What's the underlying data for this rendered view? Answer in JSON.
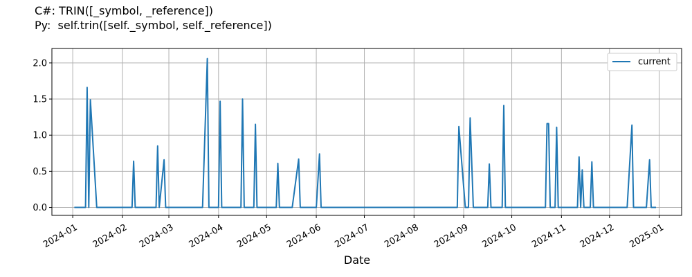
{
  "chart_data": {
    "type": "line",
    "title_lines": [
      "C#: TRIN([_symbol, _reference])",
      "Py:  self.trin([self._symbol, self._reference])"
    ],
    "xlabel": "Date",
    "ylabel": "",
    "x_ticks": [
      "2024-01",
      "2024-02",
      "2024-03",
      "2024-04",
      "2024-05",
      "2024-06",
      "2024-07",
      "2024-08",
      "2024-09",
      "2024-10",
      "2024-11",
      "2024-12",
      "2025-01"
    ],
    "y_ticks": [
      "0.0",
      "0.5",
      "1.0",
      "1.5",
      "2.0"
    ],
    "ylim": [
      -0.11,
      2.2
    ],
    "xlim": [
      "2023-12-19",
      "2025-01-15"
    ],
    "grid": true,
    "legend_position": "top-right",
    "series": [
      {
        "name": "current",
        "color": "#1f77b4",
        "points": [
          [
            "2024-01-02",
            0
          ],
          [
            "2024-01-09",
            0
          ],
          [
            "2024-01-10",
            1.66
          ],
          [
            "2024-01-11",
            0
          ],
          [
            "2024-01-12",
            1.49
          ],
          [
            "2024-01-16",
            0
          ],
          [
            "2024-02-07",
            0
          ],
          [
            "2024-02-08",
            0.64
          ],
          [
            "2024-02-09",
            0
          ],
          [
            "2024-02-22",
            0
          ],
          [
            "2024-02-23",
            0.85
          ],
          [
            "2024-02-24",
            0
          ],
          [
            "2024-02-27",
            0.66
          ],
          [
            "2024-02-28",
            0
          ],
          [
            "2024-03-22",
            0
          ],
          [
            "2024-03-25",
            2.06
          ],
          [
            "2024-03-26",
            0
          ],
          [
            "2024-04-01",
            0
          ],
          [
            "2024-04-02",
            1.47
          ],
          [
            "2024-04-03",
            0
          ],
          [
            "2024-04-15",
            0
          ],
          [
            "2024-04-16",
            1.5
          ],
          [
            "2024-04-17",
            0
          ],
          [
            "2024-04-23",
            0
          ],
          [
            "2024-04-24",
            1.15
          ],
          [
            "2024-04-25",
            0
          ],
          [
            "2024-05-07",
            0
          ],
          [
            "2024-05-08",
            0.61
          ],
          [
            "2024-05-09",
            0
          ],
          [
            "2024-05-17",
            0
          ],
          [
            "2024-05-21",
            0.67
          ],
          [
            "2024-05-22",
            0
          ],
          [
            "2024-06-01",
            0
          ],
          [
            "2024-06-03",
            0.74
          ],
          [
            "2024-06-04",
            0
          ],
          [
            "2024-08-28",
            0
          ],
          [
            "2024-08-29",
            1.12
          ],
          [
            "2024-09-02",
            0
          ],
          [
            "2024-09-04",
            0
          ],
          [
            "2024-09-05",
            1.24
          ],
          [
            "2024-09-07",
            0
          ],
          [
            "2024-09-16",
            0
          ],
          [
            "2024-09-17",
            0.6
          ],
          [
            "2024-09-18",
            0
          ],
          [
            "2024-09-25",
            0
          ],
          [
            "2024-09-26",
            1.41
          ],
          [
            "2024-09-27",
            0
          ],
          [
            "2024-10-22",
            0
          ],
          [
            "2024-10-23",
            1.16
          ],
          [
            "2024-10-24",
            1.16
          ],
          [
            "2024-10-25",
            0
          ],
          [
            "2024-10-28",
            0
          ],
          [
            "2024-10-29",
            1.11
          ],
          [
            "2024-10-30",
            0
          ],
          [
            "2024-11-11",
            0
          ],
          [
            "2024-11-12",
            0.7
          ],
          [
            "2024-11-13",
            0
          ],
          [
            "2024-11-14",
            0.52
          ],
          [
            "2024-11-15",
            0
          ],
          [
            "2024-11-19",
            0
          ],
          [
            "2024-11-20",
            0.63
          ],
          [
            "2024-11-21",
            0
          ],
          [
            "2024-12-12",
            0
          ],
          [
            "2024-12-15",
            1.14
          ],
          [
            "2024-12-16",
            0
          ],
          [
            "2024-12-24",
            0
          ],
          [
            "2024-12-26",
            0.66
          ],
          [
            "2024-12-27",
            0
          ],
          [
            "2024-12-30",
            0
          ]
        ]
      }
    ]
  }
}
